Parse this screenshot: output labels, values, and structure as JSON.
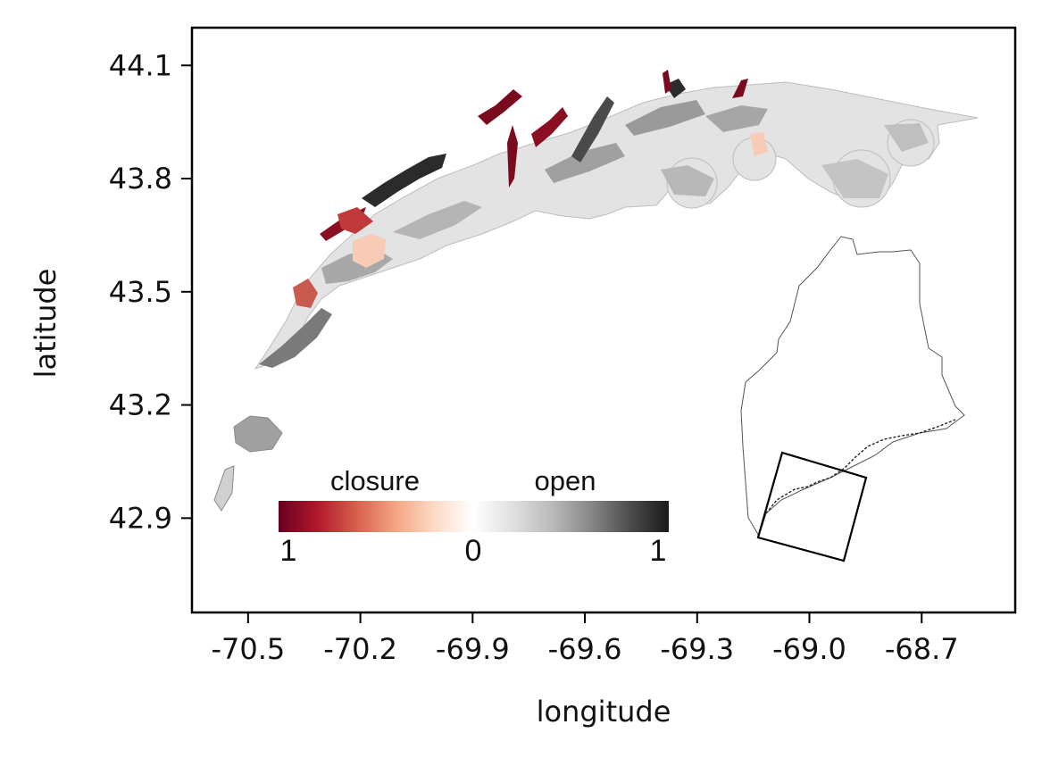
{
  "map": {
    "xlabel": "longitude",
    "ylabel": "latitude",
    "xlim": [
      -70.65,
      -68.45
    ],
    "ylim": [
      42.65,
      44.2
    ],
    "xticks": [
      -70.5,
      -70.2,
      -69.9,
      -69.6,
      -69.3,
      -69.0,
      -68.7
    ],
    "xtick_labels": [
      "-70.5",
      "-70.2",
      "-69.9",
      "-69.6",
      "-69.3",
      "-69.0",
      "-68.7"
    ],
    "yticks": [
      44.1,
      43.8,
      43.5,
      43.2,
      42.9
    ],
    "ytick_labels": [
      "44.1",
      "43.8",
      "43.5",
      "43.2",
      "42.9"
    ],
    "colorbar": {
      "left_title": "closure",
      "right_title": "open",
      "ticks": [
        "1",
        "0",
        "1"
      ],
      "colors": [
        "#67001f",
        "#b2182b",
        "#d6604d",
        "#f4a582",
        "#fddbc7",
        "#ffffff",
        "#e0e0e0",
        "#bababa",
        "#878787",
        "#4d4d4d",
        "#1a1a1a"
      ]
    },
    "colors": {
      "water_base": "#e6e6e6",
      "closure_dark": "#7a0a1e",
      "closure_mid": "#c43c3c",
      "closure_light": "#f6c8b2",
      "open_dark": "#2a2a2a",
      "open_mid": "#8a8a8a",
      "open_light": "#bdbdbd"
    }
  }
}
